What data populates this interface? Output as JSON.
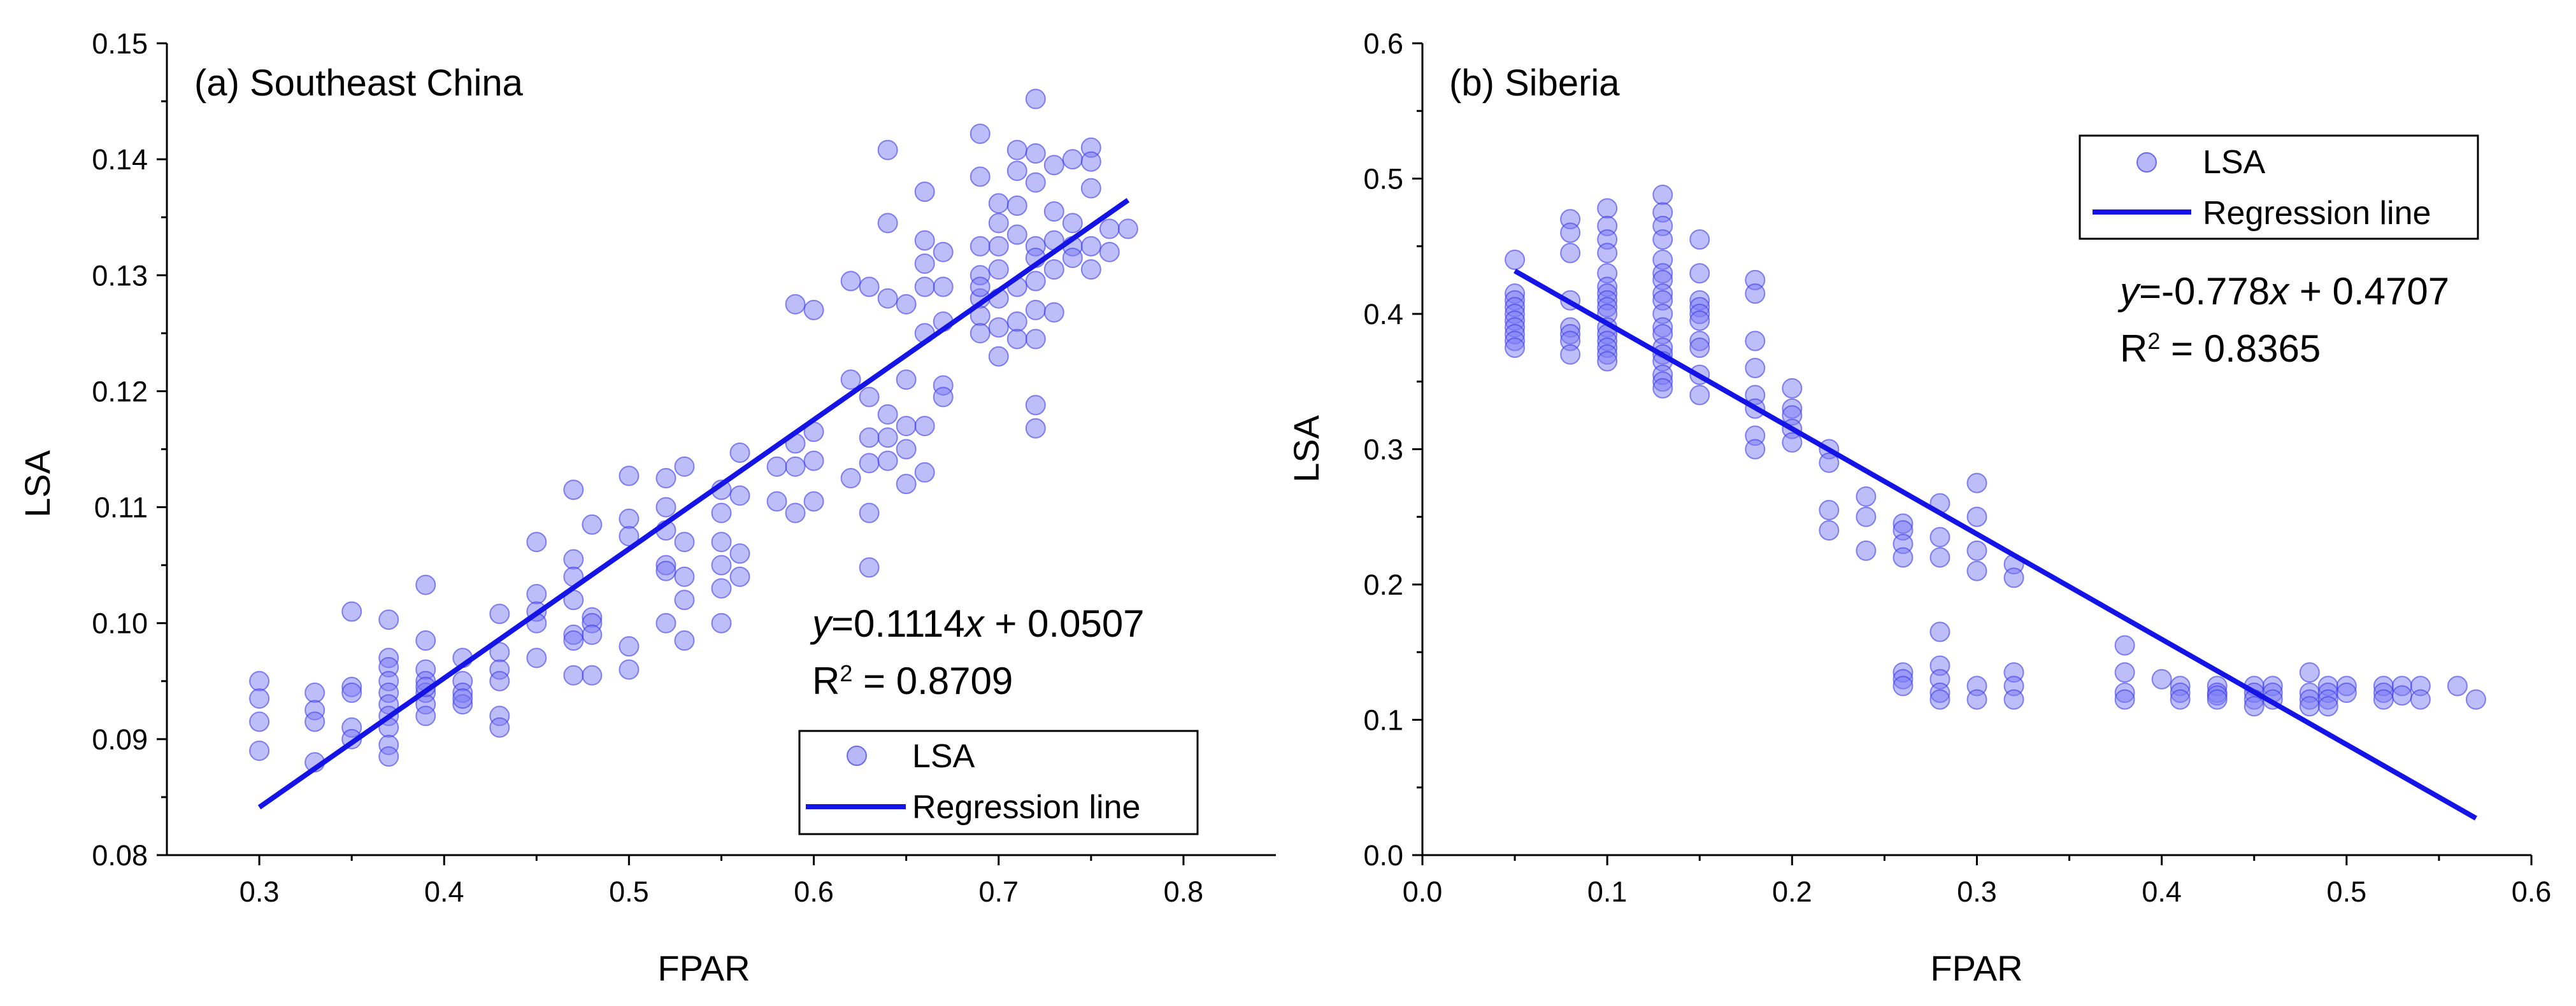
{
  "chart_data": [
    {
      "type": "scatter",
      "title": "(a) Southeast China",
      "xlabel": "FPAR",
      "ylabel": "LSA",
      "xlim": [
        0.25,
        0.85
      ],
      "ylim": [
        0.08,
        0.15
      ],
      "xticks": [
        0.3,
        0.4,
        0.5,
        0.6,
        0.7,
        0.8
      ],
      "yticks": [
        0.08,
        0.09,
        0.1,
        0.11,
        0.12,
        0.13,
        0.14,
        0.15
      ],
      "xtick_labels": [
        "0.3",
        "0.4",
        "0.5",
        "0.6",
        "0.7",
        "0.8"
      ],
      "ytick_labels": [
        "0.08",
        "0.09",
        "0.10",
        "0.11",
        "0.12",
        "0.13",
        "0.14",
        "0.15"
      ],
      "legend": {
        "position": "bottom-right",
        "entries": [
          "LSA",
          "Regression line"
        ]
      },
      "equation": {
        "y": "y",
        "rhs": "=0.1114",
        "x": "x",
        "rest": " + 0.0507"
      },
      "r2": {
        "label": "R",
        "sup": "2",
        "value": " = 0.8709"
      },
      "regression": {
        "slope": 0.1114,
        "intercept": 0.0507,
        "x_range": [
          0.3,
          0.77
        ]
      },
      "series": [
        {
          "name": "LSA",
          "color": "#7b7bf5",
          "x": [
            0.3,
            0.3,
            0.3,
            0.3,
            0.33,
            0.33,
            0.33,
            0.33,
            0.35,
            0.35,
            0.35,
            0.35,
            0.35,
            0.37,
            0.37,
            0.37,
            0.37,
            0.37,
            0.37,
            0.37,
            0.37,
            0.37,
            0.37,
            0.39,
            0.39,
            0.39,
            0.39,
            0.39,
            0.39,
            0.39,
            0.39,
            0.41,
            0.41,
            0.41,
            0.41,
            0.41,
            0.43,
            0.43,
            0.43,
            0.43,
            0.43,
            0.43,
            0.45,
            0.45,
            0.45,
            0.45,
            0.45,
            0.47,
            0.47,
            0.47,
            0.47,
            0.47,
            0.47,
            0.47,
            0.48,
            0.48,
            0.48,
            0.48,
            0.48,
            0.5,
            0.5,
            0.5,
            0.5,
            0.5,
            0.52,
            0.52,
            0.52,
            0.52,
            0.52,
            0.52,
            0.53,
            0.53,
            0.53,
            0.53,
            0.53,
            0.55,
            0.55,
            0.55,
            0.55,
            0.55,
            0.55,
            0.56,
            0.56,
            0.56,
            0.56,
            0.58,
            0.58,
            0.59,
            0.59,
            0.59,
            0.59,
            0.6,
            0.6,
            0.6,
            0.6,
            0.62,
            0.62,
            0.62,
            0.63,
            0.63,
            0.63,
            0.63,
            0.63,
            0.63,
            0.64,
            0.64,
            0.64,
            0.64,
            0.64,
            0.64,
            0.65,
            0.65,
            0.65,
            0.65,
            0.65,
            0.66,
            0.66,
            0.66,
            0.66,
            0.66,
            0.66,
            0.66,
            0.67,
            0.67,
            0.67,
            0.67,
            0.67,
            0.69,
            0.69,
            0.69,
            0.69,
            0.69,
            0.69,
            0.69,
            0.69,
            0.7,
            0.7,
            0.7,
            0.7,
            0.7,
            0.7,
            0.7,
            0.71,
            0.71,
            0.71,
            0.71,
            0.71,
            0.71,
            0.71,
            0.72,
            0.72,
            0.72,
            0.72,
            0.72,
            0.72,
            0.72,
            0.72,
            0.72,
            0.72,
            0.73,
            0.73,
            0.73,
            0.73,
            0.73,
            0.74,
            0.74,
            0.74,
            0.74,
            0.75,
            0.75,
            0.75,
            0.75,
            0.75,
            0.76,
            0.76,
            0.77
          ],
          "y": [
            0.095,
            0.0935,
            0.0915,
            0.089,
            0.094,
            0.0925,
            0.0915,
            0.088,
            0.101,
            0.0945,
            0.094,
            0.091,
            0.09,
            0.1003,
            0.097,
            0.0962,
            0.095,
            0.094,
            0.093,
            0.092,
            0.091,
            0.0895,
            0.0885,
            0.1033,
            0.0985,
            0.096,
            0.095,
            0.094,
            0.093,
            0.092,
            0.0945,
            0.097,
            0.095,
            0.094,
            0.093,
            0.0935,
            0.1008,
            0.0975,
            0.096,
            0.095,
            0.092,
            0.091,
            0.107,
            0.1025,
            0.101,
            0.1,
            0.097,
            0.1115,
            0.1055,
            0.104,
            0.102,
            0.099,
            0.0985,
            0.0955,
            0.1085,
            0.1005,
            0.1,
            0.099,
            0.0955,
            0.1127,
            0.109,
            0.1075,
            0.098,
            0.096,
            0.1125,
            0.11,
            0.108,
            0.105,
            0.1045,
            0.1,
            0.1135,
            0.107,
            0.104,
            0.102,
            0.0985,
            0.1115,
            0.1095,
            0.107,
            0.105,
            0.103,
            0.1,
            0.1147,
            0.111,
            0.106,
            0.104,
            0.1135,
            0.1105,
            0.1275,
            0.1155,
            0.1135,
            0.1095,
            0.127,
            0.1165,
            0.114,
            0.1105,
            0.1295,
            0.121,
            0.1125,
            0.129,
            0.1195,
            0.116,
            0.1138,
            0.1095,
            0.1048,
            0.1408,
            0.1345,
            0.128,
            0.118,
            0.116,
            0.114,
            0.1275,
            0.121,
            0.117,
            0.115,
            0.112,
            0.1372,
            0.133,
            0.131,
            0.129,
            0.125,
            0.117,
            0.113,
            0.132,
            0.129,
            0.126,
            0.1205,
            0.1195,
            0.1422,
            0.1385,
            0.1325,
            0.13,
            0.128,
            0.1265,
            0.125,
            0.129,
            0.1362,
            0.1345,
            0.1325,
            0.1305,
            0.128,
            0.1255,
            0.123,
            0.1408,
            0.139,
            0.136,
            0.1335,
            0.129,
            0.126,
            0.1245,
            0.1452,
            0.1405,
            0.138,
            0.1325,
            0.1315,
            0.1295,
            0.127,
            0.1245,
            0.1188,
            0.1168,
            0.1395,
            0.1355,
            0.133,
            0.1305,
            0.1268,
            0.14,
            0.1345,
            0.1325,
            0.1315,
            0.141,
            0.1398,
            0.1375,
            0.1325,
            0.1305,
            0.134,
            0.132,
            0.134
          ]
        }
      ]
    },
    {
      "type": "scatter",
      "title": "(b) Siberia",
      "xlabel": "FPAR",
      "ylabel": "LSA",
      "xlim": [
        0.0,
        0.6
      ],
      "ylim": [
        0.0,
        0.6
      ],
      "xticks": [
        0.0,
        0.1,
        0.2,
        0.3,
        0.4,
        0.5,
        0.6
      ],
      "yticks": [
        0.0,
        0.1,
        0.2,
        0.3,
        0.4,
        0.5,
        0.6
      ],
      "xtick_labels": [
        "0.0",
        "0.1",
        "0.2",
        "0.3",
        "0.4",
        "0.5",
        "0.6"
      ],
      "ytick_labels": [
        "0.0",
        "0.1",
        "0.2",
        "0.3",
        "0.4",
        "0.5",
        "0.6"
      ],
      "legend": {
        "position": "top-right",
        "entries": [
          "LSA",
          "Regression line"
        ]
      },
      "equation": {
        "y": "y",
        "rhs": "=-0.778",
        "x": "x",
        "rest": " + 0.4707"
      },
      "r2": {
        "label": "R",
        "sup": "2",
        "value": " = 0.8365"
      },
      "regression": {
        "slope": -0.778,
        "intercept": 0.4707,
        "x_range": [
          0.05,
          0.57
        ]
      },
      "series": [
        {
          "name": "LSA",
          "color": "#7b7bf5",
          "x": [
            0.05,
            0.05,
            0.05,
            0.05,
            0.05,
            0.05,
            0.05,
            0.05,
            0.05,
            0.05,
            0.08,
            0.08,
            0.08,
            0.08,
            0.08,
            0.08,
            0.08,
            0.08,
            0.1,
            0.1,
            0.1,
            0.1,
            0.1,
            0.1,
            0.1,
            0.1,
            0.1,
            0.1,
            0.1,
            0.1,
            0.1,
            0.1,
            0.1,
            0.1,
            0.13,
            0.13,
            0.13,
            0.13,
            0.13,
            0.13,
            0.13,
            0.13,
            0.13,
            0.13,
            0.13,
            0.13,
            0.13,
            0.13,
            0.13,
            0.13,
            0.13,
            0.13,
            0.15,
            0.15,
            0.15,
            0.15,
            0.15,
            0.15,
            0.15,
            0.15,
            0.15,
            0.15,
            0.18,
            0.18,
            0.18,
            0.18,
            0.18,
            0.18,
            0.18,
            0.18,
            0.2,
            0.2,
            0.2,
            0.2,
            0.2,
            0.22,
            0.22,
            0.22,
            0.22,
            0.24,
            0.24,
            0.24,
            0.26,
            0.26,
            0.26,
            0.26,
            0.26,
            0.26,
            0.26,
            0.28,
            0.28,
            0.28,
            0.28,
            0.28,
            0.28,
            0.28,
            0.28,
            0.3,
            0.3,
            0.3,
            0.3,
            0.3,
            0.3,
            0.32,
            0.32,
            0.32,
            0.32,
            0.32,
            0.38,
            0.38,
            0.38,
            0.38,
            0.4,
            0.41,
            0.41,
            0.41,
            0.43,
            0.43,
            0.43,
            0.43,
            0.45,
            0.45,
            0.45,
            0.45,
            0.46,
            0.46,
            0.46,
            0.48,
            0.48,
            0.48,
            0.48,
            0.49,
            0.49,
            0.49,
            0.49,
            0.5,
            0.5,
            0.52,
            0.52,
            0.52,
            0.53,
            0.53,
            0.54,
            0.54,
            0.56,
            0.57
          ],
          "y": [
            0.44,
            0.415,
            0.41,
            0.405,
            0.4,
            0.395,
            0.39,
            0.385,
            0.38,
            0.375,
            0.47,
            0.46,
            0.445,
            0.41,
            0.39,
            0.385,
            0.38,
            0.37,
            0.478,
            0.465,
            0.455,
            0.445,
            0.43,
            0.42,
            0.415,
            0.41,
            0.405,
            0.4,
            0.39,
            0.385,
            0.38,
            0.375,
            0.37,
            0.365,
            0.488,
            0.475,
            0.465,
            0.455,
            0.44,
            0.43,
            0.425,
            0.415,
            0.41,
            0.4,
            0.39,
            0.385,
            0.375,
            0.37,
            0.365,
            0.355,
            0.35,
            0.345,
            0.455,
            0.43,
            0.41,
            0.405,
            0.4,
            0.395,
            0.38,
            0.375,
            0.355,
            0.34,
            0.425,
            0.415,
            0.38,
            0.36,
            0.34,
            0.33,
            0.31,
            0.3,
            0.345,
            0.33,
            0.325,
            0.315,
            0.305,
            0.3,
            0.29,
            0.255,
            0.24,
            0.265,
            0.25,
            0.225,
            0.245,
            0.24,
            0.23,
            0.22,
            0.135,
            0.13,
            0.125,
            0.26,
            0.235,
            0.22,
            0.165,
            0.14,
            0.13,
            0.12,
            0.115,
            0.275,
            0.25,
            0.225,
            0.21,
            0.125,
            0.115,
            0.215,
            0.205,
            0.135,
            0.125,
            0.115,
            0.155,
            0.135,
            0.12,
            0.115,
            0.13,
            0.125,
            0.12,
            0.115,
            0.125,
            0.12,
            0.118,
            0.115,
            0.125,
            0.12,
            0.115,
            0.11,
            0.125,
            0.12,
            0.115,
            0.135,
            0.12,
            0.115,
            0.11,
            0.125,
            0.12,
            0.115,
            0.11,
            0.125,
            0.12,
            0.125,
            0.12,
            0.115,
            0.125,
            0.118,
            0.125,
            0.115,
            0.125,
            0.115
          ]
        }
      ]
    }
  ]
}
